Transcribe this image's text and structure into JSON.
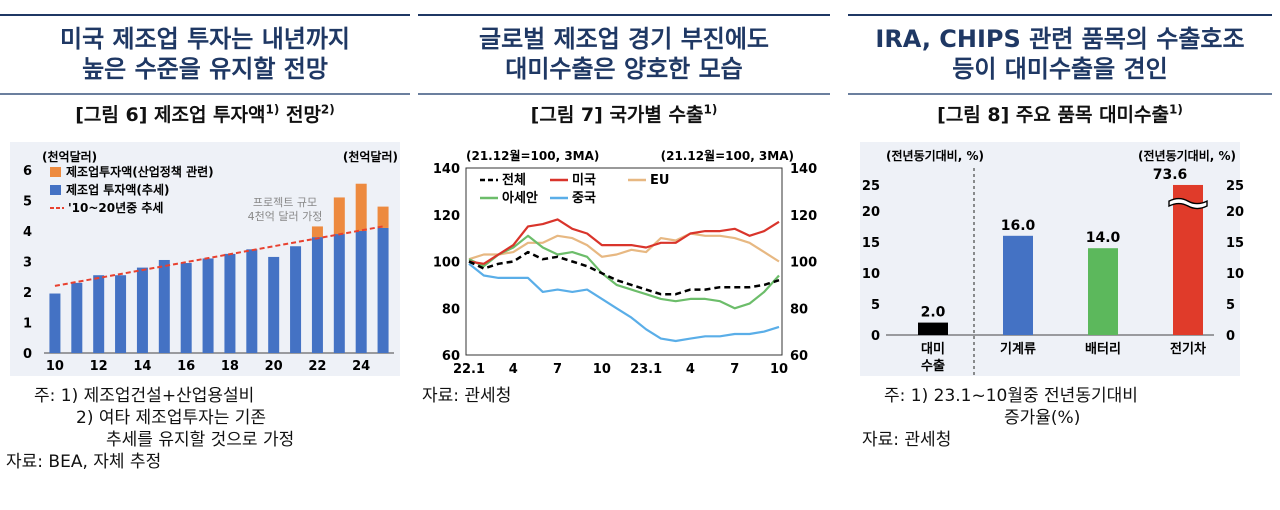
{
  "panels": [
    {
      "heading": [
        "미국 제조업 투자는 내년까지",
        "높은 수준을 유지할 전망"
      ],
      "fig_title": "[그림 6] 제조업 투자액",
      "fig_title_sup1": "1)",
      "fig_title_mid": " 전망",
      "fig_title_sup2": "2)",
      "notes": [
        "주: 1) 제조업건설+산업용설비",
        "2) 여타 제조업투자는 기존",
        "추세를 유지할 것으로 가정",
        "자료: BEA, 자체 추정"
      ]
    },
    {
      "heading": [
        "글로벌 제조업 경기 부진에도",
        "대미수출은 양호한 모습"
      ],
      "fig_title": "[그림 7] 국가별 수출",
      "fig_title_sup1": "1)",
      "notes": [
        "자료: 관세청"
      ]
    },
    {
      "heading": [
        "IRA, CHIPS 관련 품목의 수출호조",
        "등이 대미수출을 견인"
      ],
      "fig_title": "[그림 8] 주요 품목 대미수출",
      "fig_title_sup1": "1)",
      "notes": [
        "주: 1) 23.1~10월중 전년동기대비",
        "증가율(%)",
        "자료: 관세청"
      ]
    }
  ],
  "chart_data": [
    {
      "type": "bar",
      "unit_left": "(천억달러)",
      "unit_right": "(천억달러)",
      "x": [
        2010,
        2011,
        2012,
        2013,
        2014,
        2015,
        2016,
        2017,
        2018,
        2019,
        2020,
        2021,
        2022,
        2023,
        2024,
        2025
      ],
      "xticks": [
        "10",
        "12",
        "14",
        "16",
        "18",
        "20",
        "22",
        "24"
      ],
      "ylim": [
        0,
        6
      ],
      "yticks": [
        0,
        1,
        2,
        3,
        4,
        5,
        6
      ],
      "series": [
        {
          "name": "제조업 투자액(추세)",
          "color": "#4472c4",
          "values": [
            1.95,
            2.3,
            2.55,
            2.55,
            2.8,
            3.05,
            2.95,
            3.1,
            3.25,
            3.4,
            3.15,
            3.5,
            3.8,
            3.9,
            4.0,
            4.1
          ]
        },
        {
          "name": "제조업투자액(산업정책 관련)",
          "color": "#ed8a3f",
          "values": [
            0,
            0,
            0,
            0,
            0,
            0,
            0,
            0,
            0,
            0,
            0,
            0,
            0.35,
            1.2,
            1.55,
            0.7
          ]
        },
        {
          "name": "'10~20년중 추세",
          "color": "#e8412f",
          "type": "dashed-line",
          "from": [
            2010,
            2.2
          ],
          "to": [
            2025,
            4.15
          ]
        }
      ],
      "annotation": [
        "프로젝트 규모",
        "4천억 달러 가정"
      ]
    },
    {
      "type": "line",
      "unit_left": "(21.12월=100, 3MA)",
      "unit_right": "(21.12월=100, 3MA)",
      "x": [
        "22.1",
        "22.2",
        "22.3",
        "22.4",
        "22.5",
        "22.6",
        "22.7",
        "22.8",
        "22.9",
        "22.10",
        "22.11",
        "22.12",
        "23.1",
        "23.2",
        "23.3",
        "23.4",
        "23.5",
        "23.6",
        "23.7",
        "23.8",
        "23.9",
        "23.10"
      ],
      "xticks": [
        "22.1",
        "4",
        "7",
        "10",
        "23.1",
        "4",
        "7",
        "10"
      ],
      "ylim": [
        60,
        140
      ],
      "yticks": [
        60,
        80,
        100,
        120,
        140
      ],
      "series": [
        {
          "name": "전체",
          "color": "#000000",
          "dash": true,
          "values": [
            100,
            97,
            99,
            100,
            104,
            101,
            102,
            100,
            98,
            95,
            92,
            90,
            88,
            86,
            86,
            88,
            88,
            89,
            89,
            89,
            90,
            92
          ]
        },
        {
          "name": "미국",
          "color": "#d9342b",
          "values": [
            100,
            99,
            103,
            107,
            115,
            116,
            118,
            114,
            112,
            107,
            107,
            107,
            106,
            108,
            108,
            112,
            113,
            113,
            114,
            111,
            113,
            117
          ]
        },
        {
          "name": "EU",
          "color": "#e7b882",
          "values": [
            101,
            103,
            103,
            104,
            108,
            108,
            111,
            110,
            107,
            102,
            103,
            105,
            104,
            110,
            109,
            112,
            111,
            111,
            110,
            108,
            104,
            100
          ]
        },
        {
          "name": "아세안",
          "color": "#6cbd6a",
          "values": [
            101,
            98,
            103,
            106,
            111,
            106,
            103,
            104,
            102,
            95,
            90,
            88,
            86,
            84,
            83,
            84,
            84,
            83,
            80,
            82,
            87,
            94
          ]
        },
        {
          "name": "중국",
          "color": "#5aaee8",
          "values": [
            99,
            94,
            93,
            93,
            93,
            87,
            88,
            87,
            88,
            84,
            80,
            76,
            71,
            67,
            66,
            67,
            68,
            68,
            69,
            69,
            70,
            72
          ]
        }
      ]
    },
    {
      "type": "bar",
      "unit_left": "(전년동기대비, %)",
      "unit_right": "(전년동기대비, %)",
      "categories": [
        "대미\n수출",
        "기계류",
        "배터리",
        "전기차"
      ],
      "ylim": [
        0,
        25
      ],
      "yticks": [
        0,
        5,
        10,
        15,
        20,
        25
      ],
      "values": [
        2.0,
        16.0,
        14.0,
        73.6
      ],
      "labels": [
        "2.0",
        "16.0",
        "14.0",
        "73.6"
      ],
      "colors": [
        "#000000",
        "#4472c4",
        "#5cb85c",
        "#e03b2a"
      ],
      "axis_break": true
    }
  ]
}
